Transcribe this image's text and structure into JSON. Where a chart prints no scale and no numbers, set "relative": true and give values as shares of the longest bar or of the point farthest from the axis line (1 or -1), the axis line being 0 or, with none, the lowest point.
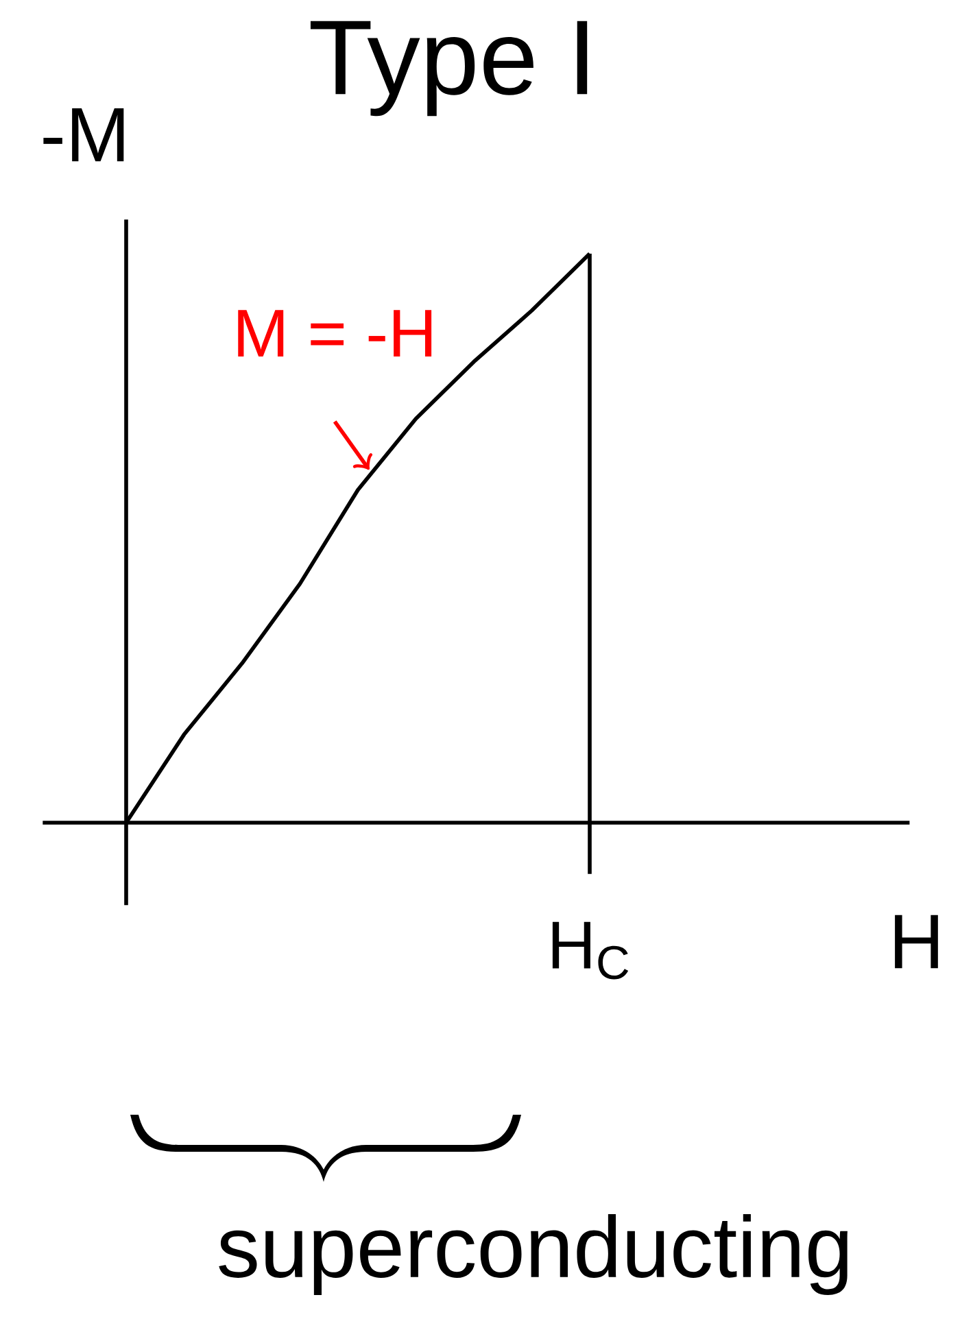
{
  "chart_data": {
    "type": "line",
    "title": "Type I",
    "xlabel": "H",
    "ylabel": "-M",
    "relative": true,
    "categories": [
      null,
      null,
      null,
      null,
      null,
      null,
      null,
      null,
      null
    ],
    "values": [
      0,
      0.155,
      0.28,
      0.42,
      0.585,
      0.71,
      0.81,
      0.9,
      1
    ],
    "color": "#000000",
    "marker": "none",
    "annotations": [
      "M = -H",
      "superconducting",
      "H$_{C}$"
    ]
  }
}
